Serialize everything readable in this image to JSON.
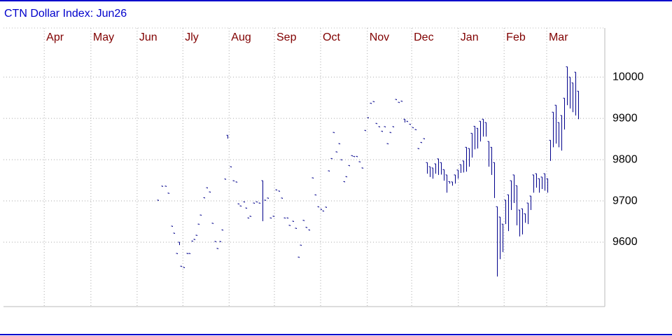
{
  "chart_data": {
    "type": "highlow",
    "title": "CTN Dollar Index: Jun26",
    "color": "#00008b",
    "grid": true,
    "xlim": [
      -0.89,
      12.25
    ],
    "xticks": [
      {
        "value": 0,
        "label": "Apr"
      },
      {
        "value": 1.02,
        "label": "May"
      },
      {
        "value": 2.03,
        "label": "Jun"
      },
      {
        "value": 3.03,
        "label": "Jly"
      },
      {
        "value": 4.04,
        "label": "Aug"
      },
      {
        "value": 5.03,
        "label": "Sep"
      },
      {
        "value": 6.04,
        "label": "Oct"
      },
      {
        "value": 7.06,
        "label": "Nov"
      },
      {
        "value": 8.03,
        "label": "Dec"
      },
      {
        "value": 9.05,
        "label": "Jan"
      },
      {
        "value": 10.05,
        "label": "Feb"
      },
      {
        "value": 10.98,
        "label": "Mar"
      }
    ],
    "ylim": [
      9444,
      10119
    ],
    "yticks": [
      9600,
      9700,
      9800,
      9900,
      10000
    ],
    "x": [
      2.49,
      2.58,
      2.66,
      2.72,
      2.8,
      2.84,
      2.91,
      2.95,
      3.0,
      3.06,
      3.13,
      3.18,
      3.24,
      3.29,
      3.33,
      3.38,
      3.43,
      3.5,
      3.56,
      3.62,
      3.69,
      3.75,
      3.79,
      3.85,
      3.9,
      3.96,
      4.01,
      4.08,
      4.14,
      4.2,
      4.25,
      4.3,
      4.37,
      4.42,
      4.46,
      4.51,
      4.59,
      4.65,
      4.71,
      4.77,
      4.83,
      4.89,
      4.95,
      5.02,
      5.08,
      5.14,
      5.2,
      5.26,
      5.32,
      5.37,
      5.44,
      5.5,
      5.57,
      5.61,
      5.67,
      5.73,
      5.8,
      5.87,
      5.93,
      5.99,
      6.05,
      6.1,
      6.16,
      6.22,
      6.28,
      6.33,
      6.39,
      6.45,
      6.5,
      6.56,
      6.61,
      6.67,
      6.73,
      6.77,
      6.83,
      6.9,
      6.96,
      7.02,
      7.08,
      7.14,
      7.2,
      7.26,
      7.32,
      7.39,
      7.45,
      7.51,
      7.57,
      7.63,
      7.69,
      7.75,
      7.81,
      7.87,
      7.94,
      8.0,
      8.06,
      8.12,
      8.18,
      8.24,
      8.3,
      8.36,
      8.42,
      8.49,
      8.55,
      8.61,
      8.67,
      8.73,
      8.79,
      8.85,
      8.91,
      8.98,
      9.04,
      9.1,
      9.16,
      9.22,
      9.28,
      9.34,
      9.4,
      9.46,
      9.53,
      9.59,
      9.65,
      9.71,
      9.77,
      9.83,
      9.89,
      9.95,
      10.02,
      10.08,
      10.14,
      10.2,
      10.26,
      10.32,
      10.38,
      10.44,
      10.5,
      10.57,
      10.63,
      10.69,
      10.75,
      10.81,
      10.87,
      10.93,
      10.99,
      11.05,
      11.12,
      11.18,
      11.24,
      11.3,
      11.36,
      11.42,
      11.48,
      11.54,
      11.61,
      11.67
    ],
    "high": [
      9702,
      9736,
      9736,
      9719,
      9639,
      9622,
      9573,
      9600,
      9542,
      9539,
      9573,
      9573,
      9603,
      9607,
      9617,
      9644,
      9666,
      9708,
      9732,
      9722,
      9646,
      9602,
      9585,
      9602,
      9630,
      9753,
      9859,
      9783,
      9749,
      9746,
      9693,
      9688,
      9698,
      9683,
      9659,
      9663,
      9695,
      9698,
      9695,
      9749,
      9702,
      9707,
      9659,
      9663,
      9727,
      9724,
      9707,
      9659,
      9659,
      9641,
      9651,
      9634,
      9564,
      9593,
      9653,
      9636,
      9630,
      9756,
      9715,
      9686,
      9680,
      9676,
      9685,
      9773,
      9803,
      9866,
      9819,
      9839,
      9800,
      9747,
      9759,
      9786,
      9810,
      9808,
      9808,
      9795,
      9780,
      9871,
      9902,
      9937,
      9941,
      9888,
      9880,
      9869,
      9880,
      9839,
      9866,
      9880,
      9946,
      9939,
      9942,
      9898,
      9893,
      9886,
      9878,
      9873,
      9827,
      9842,
      9851,
      9793,
      9783,
      9780,
      9790,
      9802,
      9793,
      9776,
      9763,
      9747,
      9746,
      9763,
      9775,
      9788,
      9797,
      9830,
      9827,
      9864,
      9881,
      9876,
      9893,
      9898,
      9890,
      9844,
      9830,
      9793,
      9686,
      9661,
      9644,
      9702,
      9715,
      9749,
      9763,
      9737,
      9678,
      9681,
      9669,
      9695,
      9712,
      9763,
      9766,
      9754,
      9758,
      9766,
      9754,
      9847,
      9915,
      9932,
      9890,
      9907,
      9949,
      10025,
      10000,
      9986,
      10012,
      9966
    ],
    "low": [
      9702,
      9736,
      9736,
      9719,
      9639,
      9622,
      9573,
      9593,
      9542,
      9539,
      9573,
      9573,
      9603,
      9607,
      9617,
      9644,
      9666,
      9708,
      9732,
      9722,
      9646,
      9602,
      9585,
      9602,
      9630,
      9753,
      9851,
      9783,
      9749,
      9746,
      9693,
      9688,
      9698,
      9683,
      9659,
      9663,
      9695,
      9698,
      9695,
      9651,
      9702,
      9707,
      9659,
      9663,
      9727,
      9724,
      9707,
      9659,
      9659,
      9641,
      9651,
      9634,
      9564,
      9593,
      9653,
      9636,
      9630,
      9756,
      9715,
      9686,
      9680,
      9676,
      9685,
      9773,
      9803,
      9866,
      9819,
      9839,
      9800,
      9747,
      9759,
      9786,
      9810,
      9808,
      9808,
      9795,
      9780,
      9871,
      9902,
      9937,
      9941,
      9888,
      9880,
      9869,
      9880,
      9839,
      9866,
      9880,
      9946,
      9939,
      9942,
      9890,
      9893,
      9886,
      9878,
      9873,
      9827,
      9842,
      9851,
      9766,
      9758,
      9754,
      9766,
      9763,
      9764,
      9749,
      9720,
      9742,
      9737,
      9742,
      9754,
      9768,
      9769,
      9771,
      9783,
      9805,
      9825,
      9827,
      9844,
      9856,
      9856,
      9783,
      9763,
      9707,
      9517,
      9559,
      9576,
      9644,
      9627,
      9678,
      9695,
      9641,
      9614,
      9619,
      9647,
      9644,
      9678,
      9720,
      9732,
      9720,
      9729,
      9725,
      9720,
      9797,
      9830,
      9839,
      9830,
      9822,
      9873,
      9932,
      9924,
      9915,
      9907,
      9898
    ]
  }
}
